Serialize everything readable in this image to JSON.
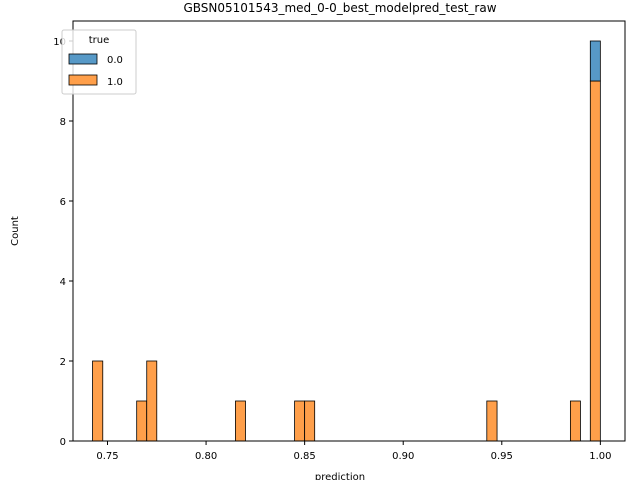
{
  "chart_data": {
    "type": "bar",
    "title": "GBSN05101543_med_0-0_best_modelpred_test_raw",
    "xlabel": "prediction",
    "ylabel": "Count",
    "xlim": [
      0.7325,
      1.0125
    ],
    "ylim": [
      0,
      10.5
    ],
    "xticks": [
      0.75,
      0.8,
      0.85,
      0.9,
      0.95,
      1.0
    ],
    "xtick_labels": [
      "0.75",
      "0.80",
      "0.85",
      "0.90",
      "0.95",
      "1.00"
    ],
    "yticks": [
      0,
      2,
      4,
      6,
      8,
      10
    ],
    "ytick_labels": [
      "0",
      "2",
      "4",
      "6",
      "8",
      "10"
    ],
    "stacked": true,
    "bins": [
      {
        "x0": 0.7424,
        "x1": 0.7476,
        "label_1_0": 2,
        "label_0_0": 0
      },
      {
        "x0": 0.7648,
        "x1": 0.7699,
        "label_1_0": 1,
        "label_0_0": 0
      },
      {
        "x0": 0.7699,
        "x1": 0.775,
        "label_1_0": 2,
        "label_0_0": 0
      },
      {
        "x0": 0.8149,
        "x1": 0.82,
        "label_1_0": 1,
        "label_0_0": 0
      },
      {
        "x0": 0.8449,
        "x1": 0.85,
        "label_1_0": 1,
        "label_0_0": 0
      },
      {
        "x0": 0.85,
        "x1": 0.8551,
        "label_1_0": 1,
        "label_0_0": 0
      },
      {
        "x0": 0.9424,
        "x1": 0.9476,
        "label_1_0": 1,
        "label_0_0": 0
      },
      {
        "x0": 0.9848,
        "x1": 0.9899,
        "label_1_0": 1,
        "label_0_0": 0
      },
      {
        "x0": 0.9949,
        "x1": 1.0,
        "label_1_0": 9,
        "label_0_0": 1
      }
    ],
    "series": [
      {
        "name": "0.0",
        "color": "#5799c7"
      },
      {
        "name": "1.0",
        "color": "#ff9f4a"
      }
    ],
    "legend": {
      "title": "true",
      "placement": "top-left"
    },
    "grid": false
  }
}
